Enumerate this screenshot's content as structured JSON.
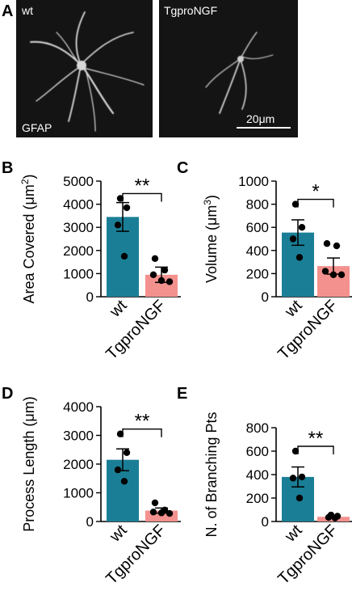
{
  "panel_a": {
    "label": "A",
    "left_title": "wt",
    "right_title": "TgproNGF",
    "stain": "GFAP",
    "scale_bar": "20μm"
  },
  "colors": {
    "wt": "#1a7f96",
    "tg": "#f3918e",
    "image_bg": "#141414"
  },
  "chart_data": [
    {
      "panel": "B",
      "type": "bar",
      "categories": [
        "wt",
        "TgproNGF"
      ],
      "values": [
        3450,
        950
      ],
      "sem": [
        620,
        330
      ],
      "points": [
        [
          4250,
          3850,
          3100,
          1750
        ],
        [
          1650,
          1150,
          950,
          700,
          650
        ]
      ],
      "ylabel": "Area Covered (μm",
      "ylabel_sup": "2",
      "ylabel_end": ")",
      "ylim": [
        0,
        5000
      ],
      "yticks": [
        "0",
        "1000",
        "2000",
        "3000",
        "4000",
        "5000"
      ],
      "significance": "**"
    },
    {
      "panel": "C",
      "type": "bar",
      "categories": [
        "wt",
        "TgproNGF"
      ],
      "values": [
        555,
        265
      ],
      "sem": [
        110,
        70
      ],
      "points": [
        [
          800,
          600,
          500,
          340
        ],
        [
          460,
          440,
          220,
          190,
          190
        ]
      ],
      "ylabel": "Volume (μm",
      "ylabel_sup": "3",
      "ylabel_end": ")",
      "ylim": [
        0,
        1000
      ],
      "yticks": [
        "0",
        "200",
        "400",
        "600",
        "800",
        "1000"
      ],
      "significance": "*"
    },
    {
      "panel": "D",
      "type": "bar",
      "categories": [
        "wt",
        "TgproNGF"
      ],
      "values": [
        2150,
        380
      ],
      "sem": [
        380,
        90
      ],
      "points": [
        [
          3050,
          2400,
          1800,
          1400
        ],
        [
          650,
          400,
          330,
          300,
          280
        ]
      ],
      "ylabel": "Process Length (μm)",
      "ylim": [
        0,
        4000
      ],
      "yticks": [
        "0",
        "1000",
        "2000",
        "3000",
        "4000"
      ],
      "significance": "**"
    },
    {
      "panel": "E",
      "type": "bar",
      "categories": [
        "wt",
        "TgproNGF"
      ],
      "values": [
        380,
        40
      ],
      "sem": [
        85,
        10
      ],
      "points": [
        [
          600,
          380,
          370,
          200
        ],
        [
          55,
          45,
          35,
          30
        ]
      ],
      "ylabel": "N. of Branching Pts",
      "ylim": [
        0,
        800
      ],
      "yticks": [
        "0",
        "200",
        "400",
        "600",
        "800"
      ],
      "significance": "**"
    }
  ]
}
